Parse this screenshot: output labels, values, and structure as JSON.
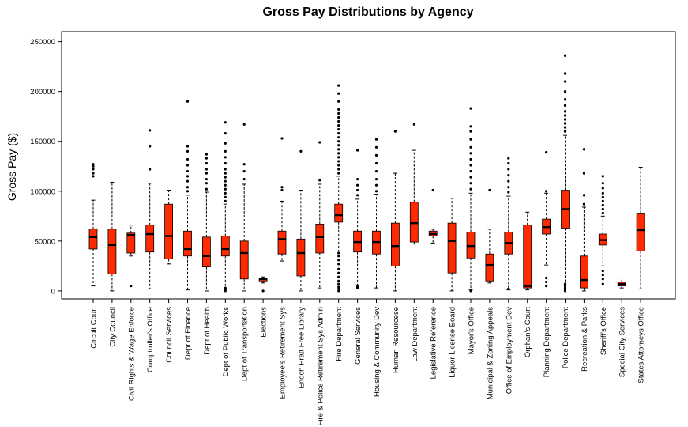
{
  "chart_data": {
    "type": "boxplot",
    "title": "Gross Pay Distributions by Agency",
    "ylabel": "Gross Pay ($)",
    "xlabel": "",
    "ylim": [
      -8000,
      260000
    ],
    "yticks": [
      0,
      50000,
      100000,
      150000,
      200000,
      250000
    ],
    "ytick_labels": [
      "0",
      "50000",
      "100000",
      "150000",
      "200000",
      "250000"
    ],
    "grid": false,
    "box_color": "#ff2a00",
    "categories": [
      "Circuit Court",
      "City Council",
      "Civil Rights & Wage Enforce",
      "Comptroller's Office",
      "Council Services",
      "Dept of Finance",
      "Dept of Health",
      "Dept of Public Works",
      "Dept of Transportation",
      "Elections",
      "Employee's Retirement Sys",
      "Enoch Pratt Free Library",
      "Fire & Police Retirement Sys Admin",
      "Fire Department",
      "General Services",
      "Housing & Community Dev",
      "Human Resourcese",
      "Law Department",
      "Legislative Reference",
      "Liquor License Board",
      "Mayor's Office",
      "Municipal & Zoning Appeals",
      "Office of Employment Dev",
      "Orphan's Court",
      "Planning Department",
      "Police Department",
      "Recreation & Parks",
      "Sheriff's Office",
      "Special City Services",
      "States Attorneys Office"
    ],
    "boxes": [
      {
        "whislo": 5000,
        "q1": 42000,
        "med": 54000,
        "q3": 62000,
        "whishi": 91000,
        "fliers": [
          115000,
          118000,
          122000,
          125000,
          127000
        ]
      },
      {
        "whislo": 0,
        "q1": 17000,
        "med": 46000,
        "q3": 62000,
        "whishi": 109000,
        "fliers": []
      },
      {
        "whislo": 35000,
        "q1": 38000,
        "med": 56000,
        "q3": 58000,
        "whishi": 66000,
        "fliers": [
          5000
        ]
      },
      {
        "whislo": 2000,
        "q1": 39000,
        "med": 57000,
        "q3": 66000,
        "whishi": 108000,
        "fliers": [
          122000,
          145000,
          161000
        ]
      },
      {
        "whislo": 27000,
        "q1": 32000,
        "med": 55000,
        "q3": 87000,
        "whishi": 101000,
        "fliers": []
      },
      {
        "whislo": 1000,
        "q1": 35000,
        "med": 42000,
        "q3": 60000,
        "whishi": 96000,
        "fliers": [
          100000,
          104000,
          110000,
          115000,
          120000,
          126000,
          132000,
          140000,
          145000,
          190000
        ]
      },
      {
        "whislo": 0,
        "q1": 24000,
        "med": 35000,
        "q3": 54000,
        "whishi": 99000,
        "fliers": [
          102000,
          108000,
          112000,
          118000,
          122000,
          128000,
          133000,
          137000
        ]
      },
      {
        "whislo": 2000,
        "q1": 35000,
        "med": 42000,
        "q3": 55000,
        "whishi": 87000,
        "fliers": [
          0,
          1500,
          3000,
          90000,
          94000,
          98000,
          102000,
          106000,
          110000,
          114000,
          118000,
          122000,
          128000,
          134000,
          140000,
          148000,
          158000,
          169000
        ]
      },
      {
        "whislo": 0,
        "q1": 12000,
        "med": 38000,
        "q3": 50000,
        "whishi": 107000,
        "fliers": [
          112000,
          120000,
          127000,
          167000
        ]
      },
      {
        "whislo": 8000,
        "q1": 10000,
        "med": 12000,
        "q3": 13000,
        "whishi": 14000,
        "fliers": [
          0
        ]
      },
      {
        "whislo": 30000,
        "q1": 37000,
        "med": 52000,
        "q3": 60000,
        "whishi": 90000,
        "fliers": [
          101000,
          104000,
          153000
        ]
      },
      {
        "whislo": 0,
        "q1": 15000,
        "med": 38000,
        "q3": 52000,
        "whishi": 101000,
        "fliers": [
          140000
        ]
      },
      {
        "whislo": 3000,
        "q1": 38000,
        "med": 54000,
        "q3": 67000,
        "whishi": 107000,
        "fliers": [
          111000,
          149000
        ]
      },
      {
        "whislo": 40000,
        "q1": 69000,
        "med": 76000,
        "q3": 87000,
        "whishi": 115000,
        "fliers": [
          0,
          2000,
          4000,
          7000,
          10000,
          14000,
          18000,
          22000,
          27000,
          31000,
          35000,
          38000,
          118000,
          122000,
          126000,
          130000,
          134000,
          138000,
          142000,
          146000,
          150000,
          154000,
          158000,
          162000,
          166000,
          170000,
          174000,
          178000,
          182000,
          190000,
          198000,
          206000
        ]
      },
      {
        "whislo": 6000,
        "q1": 39000,
        "med": 49000,
        "q3": 60000,
        "whishi": 92000,
        "fliers": [
          3000,
          4500,
          96000,
          101000,
          106000,
          112000,
          141000
        ]
      },
      {
        "whislo": 3000,
        "q1": 37000,
        "med": 49000,
        "q3": 60000,
        "whishi": 97000,
        "fliers": [
          100000,
          106000,
          112000,
          120000,
          128000,
          136000,
          144000,
          152000
        ]
      },
      {
        "whislo": 0,
        "q1": 25000,
        "med": 45000,
        "q3": 68000,
        "whishi": 118000,
        "fliers": [
          160000
        ]
      },
      {
        "whislo": 47000,
        "q1": 49000,
        "med": 68000,
        "q3": 89000,
        "whishi": 141000,
        "fliers": [
          167000
        ]
      },
      {
        "whislo": 48000,
        "q1": 55000,
        "med": 57000,
        "q3": 60000,
        "whishi": 62000,
        "fliers": [
          101000
        ]
      },
      {
        "whislo": 0,
        "q1": 18000,
        "med": 50000,
        "q3": 68000,
        "whishi": 93000,
        "fliers": []
      },
      {
        "whislo": 1000,
        "q1": 33000,
        "med": 45000,
        "q3": 59000,
        "whishi": 98000,
        "fliers": [
          0,
          102000,
          108000,
          114000,
          120000,
          126000,
          132000,
          138000,
          144000,
          152000,
          160000,
          165000,
          183000
        ]
      },
      {
        "whislo": 8000,
        "q1": 10000,
        "med": 26000,
        "q3": 37000,
        "whishi": 62000,
        "fliers": [
          101000
        ]
      },
      {
        "whislo": 1000,
        "q1": 37000,
        "med": 48000,
        "q3": 59000,
        "whishi": 95000,
        "fliers": [
          2000,
          99000,
          104000,
          110000,
          116000,
          122000,
          128000,
          133000
        ]
      },
      {
        "whislo": 1000,
        "q1": 3000,
        "med": 5000,
        "q3": 66000,
        "whishi": 79000,
        "fliers": []
      },
      {
        "whislo": 26000,
        "q1": 57000,
        "med": 64000,
        "q3": 72000,
        "whishi": 98000,
        "fliers": [
          5000,
          9000,
          13000,
          100000,
          139000
        ]
      },
      {
        "whislo": 9000,
        "q1": 63000,
        "med": 82000,
        "q3": 101000,
        "whishi": 156000,
        "fliers": [
          0,
          1500,
          3000,
          5000,
          7000,
          160000,
          164000,
          168000,
          172000,
          176000,
          180000,
          186000,
          192000,
          200000,
          210000,
          218000,
          236000
        ]
      },
      {
        "whislo": 0,
        "q1": 3000,
        "med": 11000,
        "q3": 35000,
        "whishi": 84000,
        "fliers": [
          87000,
          96000,
          118000,
          142000
        ]
      },
      {
        "whislo": 25000,
        "q1": 46000,
        "med": 51000,
        "q3": 57000,
        "whishi": 75000,
        "fliers": [
          7000,
          12000,
          16000,
          20000,
          78000,
          82000,
          86000,
          90000,
          94000,
          98000,
          103000,
          108000,
          115000
        ]
      },
      {
        "whislo": 3000,
        "q1": 5000,
        "med": 7000,
        "q3": 9000,
        "whishi": 13000,
        "fliers": []
      },
      {
        "whislo": 2000,
        "q1": 40000,
        "med": 61000,
        "q3": 78000,
        "whishi": 124000,
        "fliers": []
      }
    ]
  }
}
